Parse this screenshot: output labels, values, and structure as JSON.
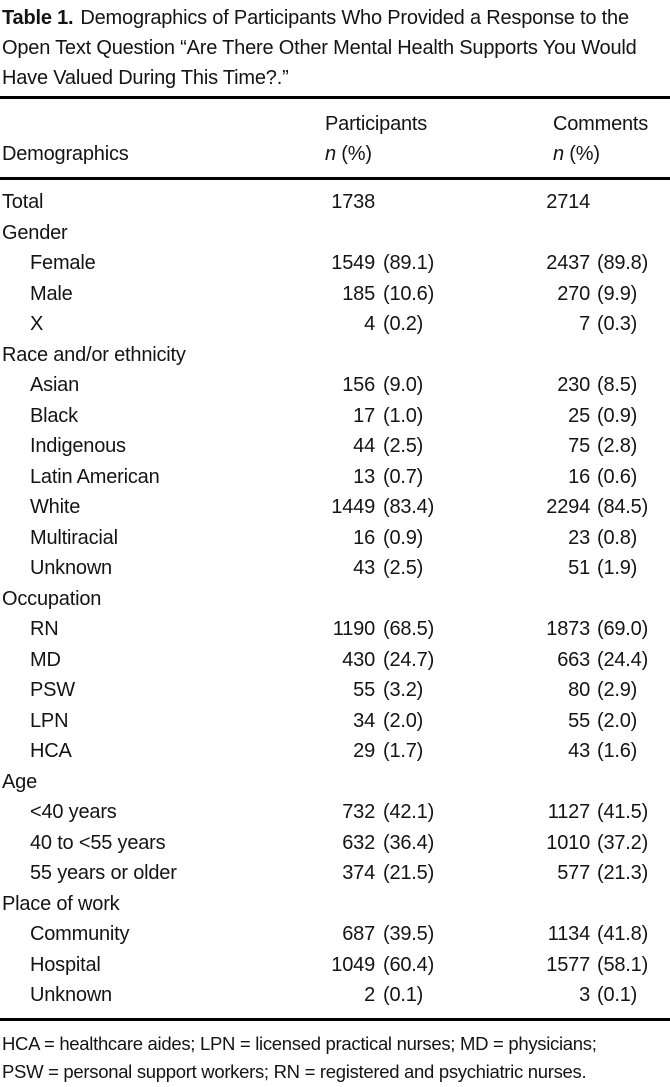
{
  "title": {
    "label": "Table 1.",
    "text": "Demographics of Participants Who Provided a Response to the Open Text Question “Are There Other Mental Health Supports You Would Have Valued During This Time?.”"
  },
  "header": {
    "demographics": "Demographics",
    "participants": "Participants",
    "comments": "Comments",
    "n_label": "n",
    "pct_label": "(%)"
  },
  "rows": [
    {
      "label": "Total",
      "indent": false,
      "p_n": "1738",
      "p_pct": "",
      "c_n": "2714",
      "c_pct": ""
    },
    {
      "label": "Gender",
      "indent": false,
      "p_n": "",
      "p_pct": "",
      "c_n": "",
      "c_pct": ""
    },
    {
      "label": "Female",
      "indent": true,
      "p_n": "1549",
      "p_pct": "(89.1)",
      "c_n": "2437",
      "c_pct": "(89.8)"
    },
    {
      "label": "Male",
      "indent": true,
      "p_n": "185",
      "p_pct": "(10.6)",
      "c_n": "270",
      "c_pct": "(9.9)"
    },
    {
      "label": "X",
      "indent": true,
      "p_n": "4",
      "p_pct": "(0.2)",
      "c_n": "7",
      "c_pct": "(0.3)"
    },
    {
      "label": "Race and/or ethnicity",
      "indent": false,
      "p_n": "",
      "p_pct": "",
      "c_n": "",
      "c_pct": ""
    },
    {
      "label": "Asian",
      "indent": true,
      "p_n": "156",
      "p_pct": "(9.0)",
      "c_n": "230",
      "c_pct": "(8.5)"
    },
    {
      "label": "Black",
      "indent": true,
      "p_n": "17",
      "p_pct": "(1.0)",
      "c_n": "25",
      "c_pct": "(0.9)"
    },
    {
      "label": "Indigenous",
      "indent": true,
      "p_n": "44",
      "p_pct": "(2.5)",
      "c_n": "75",
      "c_pct": "(2.8)"
    },
    {
      "label": "Latin American",
      "indent": true,
      "p_n": "13",
      "p_pct": "(0.7)",
      "c_n": "16",
      "c_pct": "(0.6)"
    },
    {
      "label": "White",
      "indent": true,
      "p_n": "1449",
      "p_pct": "(83.4)",
      "c_n": "2294",
      "c_pct": "(84.5)"
    },
    {
      "label": "Multiracial",
      "indent": true,
      "p_n": "16",
      "p_pct": "(0.9)",
      "c_n": "23",
      "c_pct": "(0.8)"
    },
    {
      "label": "Unknown",
      "indent": true,
      "p_n": "43",
      "p_pct": "(2.5)",
      "c_n": "51",
      "c_pct": "(1.9)"
    },
    {
      "label": "Occupation",
      "indent": false,
      "p_n": "",
      "p_pct": "",
      "c_n": "",
      "c_pct": ""
    },
    {
      "label": "RN",
      "indent": true,
      "p_n": "1190",
      "p_pct": "(68.5)",
      "c_n": "1873",
      "c_pct": "(69.0)"
    },
    {
      "label": "MD",
      "indent": true,
      "p_n": "430",
      "p_pct": "(24.7)",
      "c_n": "663",
      "c_pct": "(24.4)"
    },
    {
      "label": "PSW",
      "indent": true,
      "p_n": "55",
      "p_pct": "(3.2)",
      "c_n": "80",
      "c_pct": "(2.9)"
    },
    {
      "label": "LPN",
      "indent": true,
      "p_n": "34",
      "p_pct": "(2.0)",
      "c_n": "55",
      "c_pct": "(2.0)"
    },
    {
      "label": "HCA",
      "indent": true,
      "p_n": "29",
      "p_pct": "(1.7)",
      "c_n": "43",
      "c_pct": "(1.6)"
    },
    {
      "label": "Age",
      "indent": false,
      "p_n": "",
      "p_pct": "",
      "c_n": "",
      "c_pct": ""
    },
    {
      "label": "<40 years",
      "indent": true,
      "p_n": "732",
      "p_pct": "(42.1)",
      "c_n": "1127",
      "c_pct": "(41.5)"
    },
    {
      "label": "40 to <55 years",
      "indent": true,
      "p_n": "632",
      "p_pct": "(36.4)",
      "c_n": "1010",
      "c_pct": "(37.2)"
    },
    {
      "label": "55 years or older",
      "indent": true,
      "p_n": "374",
      "p_pct": "(21.5)",
      "c_n": "577",
      "c_pct": "(21.3)"
    },
    {
      "label": "Place of work",
      "indent": false,
      "p_n": "",
      "p_pct": "",
      "c_n": "",
      "c_pct": ""
    },
    {
      "label": "Community",
      "indent": true,
      "p_n": "687",
      "p_pct": "(39.5)",
      "c_n": "1134",
      "c_pct": "(41.8)"
    },
    {
      "label": "Hospital",
      "indent": true,
      "p_n": "1049",
      "p_pct": "(60.4)",
      "c_n": "1577",
      "c_pct": "(58.1)"
    },
    {
      "label": "Unknown",
      "indent": true,
      "p_n": "2",
      "p_pct": "(0.1)",
      "c_n": "3",
      "c_pct": "(0.1)"
    }
  ],
  "footnote": {
    "line1": "HCA = healthcare aides; LPN = licensed practical nurses; MD = physicians;",
    "line2": "PSW = personal support workers; RN = registered and psychiatric nurses."
  }
}
